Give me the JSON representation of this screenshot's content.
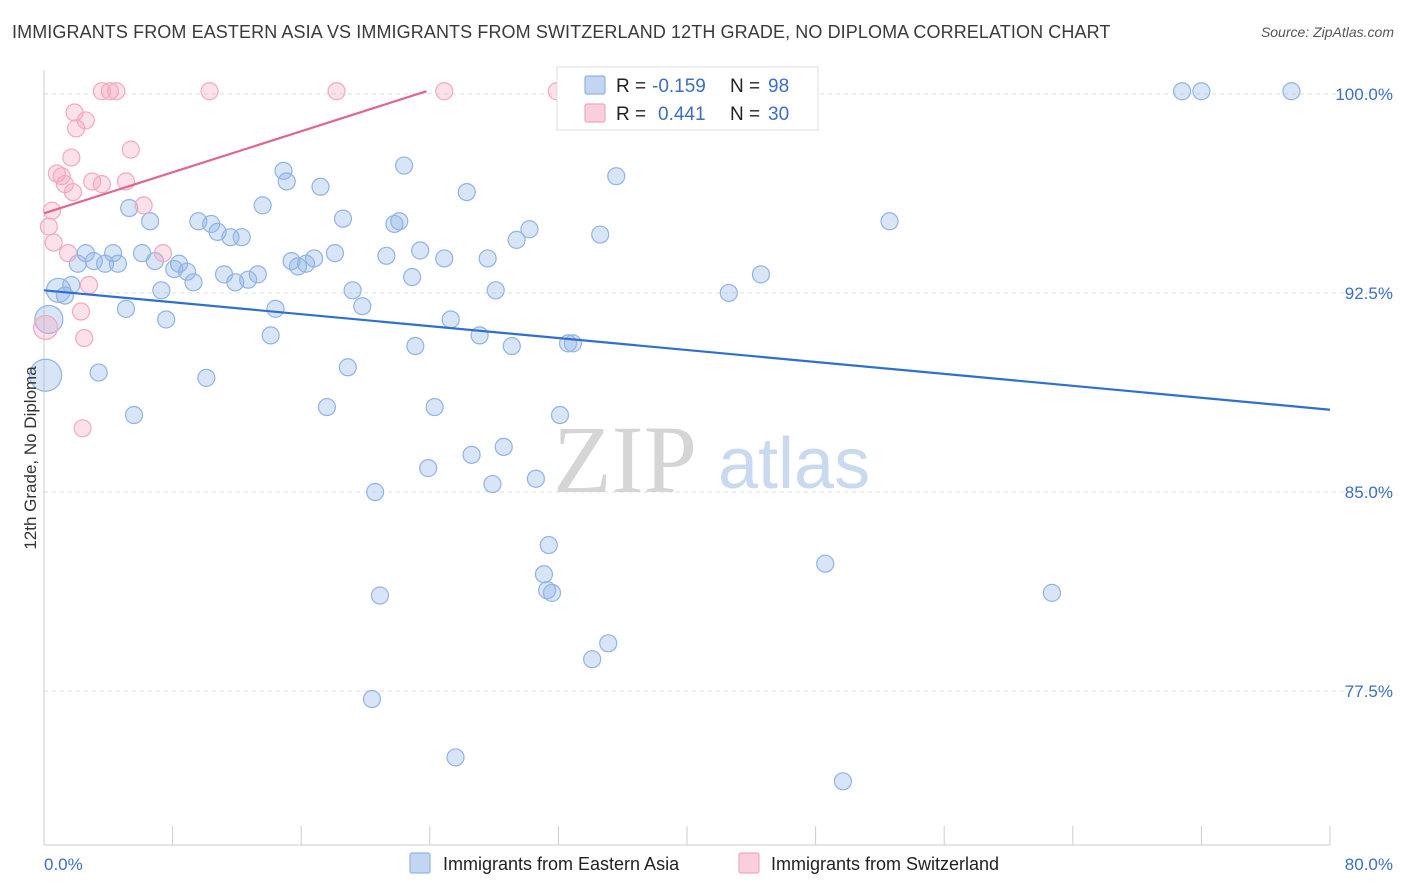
{
  "title": "IMMIGRANTS FROM EASTERN ASIA VS IMMIGRANTS FROM SWITZERLAND 12TH GRADE, NO DIPLOMA CORRELATION CHART",
  "source": "Source: ZipAtlas.com",
  "watermark": {
    "zip": "ZIP",
    "atlas": "atlas"
  },
  "legend": {
    "r_label": "R =",
    "n_label": "N =",
    "rows": [
      {
        "r": "-0.159",
        "n": "98"
      },
      {
        "r": "0.441",
        "n": "30"
      }
    ]
  },
  "chart_data": {
    "type": "scatter",
    "xlabel": "",
    "ylabel": "12th Grade, No Diploma",
    "xlim": [
      0,
      80
    ],
    "ylim": [
      71.7,
      100.9
    ],
    "x_tick_labels": [
      "0.0%",
      "80.0%"
    ],
    "y_ticks": [
      77.5,
      85.0,
      92.5,
      100.0
    ],
    "y_tick_labels": [
      "77.5%",
      "85.0%",
      "92.5%",
      "100.0%"
    ],
    "grid": "horizontal dashed",
    "legend_position": "top-center",
    "series": [
      {
        "name": "Immigrants from Eastern Asia",
        "color": "#8fb4e6",
        "line_color": "#2f6fcf",
        "trend": [
          [
            0,
            92.6
          ],
          [
            80,
            88.1
          ]
        ],
        "points": [
          [
            0.1,
            89.4
          ],
          [
            0.3,
            91.5
          ],
          [
            0.9,
            92.6
          ],
          [
            1.3,
            92.4
          ],
          [
            1.7,
            92.8
          ],
          [
            2.1,
            93.6
          ],
          [
            2.6,
            94.0
          ],
          [
            3.1,
            93.7
          ],
          [
            3.4,
            89.5
          ],
          [
            3.8,
            93.6
          ],
          [
            4.3,
            94.0
          ],
          [
            4.6,
            93.6
          ],
          [
            5.1,
            91.9
          ],
          [
            5.3,
            95.7
          ],
          [
            5.6,
            87.9
          ],
          [
            6.1,
            94.0
          ],
          [
            6.6,
            95.2
          ],
          [
            6.9,
            93.7
          ],
          [
            7.3,
            92.6
          ],
          [
            7.6,
            91.5
          ],
          [
            8.1,
            93.4
          ],
          [
            8.4,
            93.6
          ],
          [
            8.9,
            93.3
          ],
          [
            9.3,
            92.9
          ],
          [
            9.6,
            95.2
          ],
          [
            10.1,
            89.3
          ],
          [
            10.4,
            95.1
          ],
          [
            10.8,
            94.8
          ],
          [
            11.2,
            93.2
          ],
          [
            11.6,
            94.6
          ],
          [
            11.9,
            92.9
          ],
          [
            12.3,
            94.6
          ],
          [
            12.7,
            93.0
          ],
          [
            13.3,
            93.2
          ],
          [
            13.6,
            95.8
          ],
          [
            14.1,
            90.9
          ],
          [
            14.4,
            91.9
          ],
          [
            14.9,
            97.1
          ],
          [
            15.1,
            96.7
          ],
          [
            15.4,
            93.7
          ],
          [
            15.8,
            93.5
          ],
          [
            16.3,
            93.6
          ],
          [
            16.8,
            93.8
          ],
          [
            17.2,
            96.5
          ],
          [
            17.6,
            88.2
          ],
          [
            18.1,
            94.0
          ],
          [
            18.6,
            95.3
          ],
          [
            18.9,
            89.7
          ],
          [
            19.2,
            92.6
          ],
          [
            19.8,
            92.0
          ],
          [
            20.6,
            85.0
          ],
          [
            20.9,
            81.1
          ],
          [
            20.4,
            77.2
          ],
          [
            21.3,
            93.9
          ],
          [
            21.8,
            95.1
          ],
          [
            22.1,
            95.2
          ],
          [
            22.4,
            97.3
          ],
          [
            22.9,
            93.1
          ],
          [
            23.1,
            90.5
          ],
          [
            23.4,
            94.1
          ],
          [
            23.9,
            85.9
          ],
          [
            24.3,
            88.2
          ],
          [
            24.9,
            93.8
          ],
          [
            25.3,
            91.5
          ],
          [
            25.6,
            75.0
          ],
          [
            26.3,
            96.3
          ],
          [
            26.6,
            86.4
          ],
          [
            27.1,
            90.9
          ],
          [
            27.6,
            93.8
          ],
          [
            27.9,
            85.3
          ],
          [
            28.1,
            92.6
          ],
          [
            28.6,
            86.7
          ],
          [
            29.1,
            90.5
          ],
          [
            29.4,
            94.5
          ],
          [
            30.2,
            94.9
          ],
          [
            30.6,
            85.5
          ],
          [
            31.1,
            81.9
          ],
          [
            31.4,
            83.0
          ],
          [
            31.3,
            81.3
          ],
          [
            31.6,
            81.2
          ],
          [
            32.1,
            87.9
          ],
          [
            32.6,
            90.6
          ],
          [
            32.9,
            90.6
          ],
          [
            34.1,
            78.7
          ],
          [
            34.6,
            94.7
          ],
          [
            35.1,
            79.3
          ],
          [
            35.6,
            96.9
          ],
          [
            36.8,
            99.8
          ],
          [
            38.1,
            100.1
          ],
          [
            42.6,
            92.5
          ],
          [
            44.6,
            93.2
          ],
          [
            48.6,
            82.3
          ],
          [
            49.7,
            74.1
          ],
          [
            52.6,
            95.2
          ],
          [
            62.7,
            81.2
          ],
          [
            70.8,
            100.1
          ],
          [
            77.6,
            100.1
          ],
          [
            72.0,
            100.1
          ]
        ]
      },
      {
        "name": "Immigrants from Switzerland",
        "color": "#f4a8c0",
        "line_color": "#e0668f",
        "trend": [
          [
            0,
            95.5
          ],
          [
            23.8,
            100.1
          ]
        ],
        "points": [
          [
            0.1,
            91.2
          ],
          [
            0.3,
            95.0
          ],
          [
            0.5,
            95.6
          ],
          [
            0.6,
            94.4
          ],
          [
            0.8,
            97.0
          ],
          [
            1.1,
            96.9
          ],
          [
            1.3,
            96.6
          ],
          [
            1.5,
            94.0
          ],
          [
            1.7,
            97.6
          ],
          [
            1.8,
            96.3
          ],
          [
            1.9,
            99.3
          ],
          [
            2.0,
            98.7
          ],
          [
            2.3,
            91.8
          ],
          [
            2.4,
            87.4
          ],
          [
            2.5,
            90.8
          ],
          [
            2.6,
            99.0
          ],
          [
            2.8,
            92.8
          ],
          [
            3.0,
            96.7
          ],
          [
            3.6,
            96.6
          ],
          [
            3.6,
            100.1
          ],
          [
            4.1,
            100.1
          ],
          [
            4.5,
            100.1
          ],
          [
            5.1,
            96.7
          ],
          [
            5.4,
            97.9
          ],
          [
            6.2,
            95.8
          ],
          [
            7.4,
            94.0
          ],
          [
            10.3,
            100.1
          ],
          [
            18.2,
            100.1
          ],
          [
            24.9,
            100.1
          ],
          [
            31.9,
            100.1
          ]
        ]
      }
    ]
  }
}
